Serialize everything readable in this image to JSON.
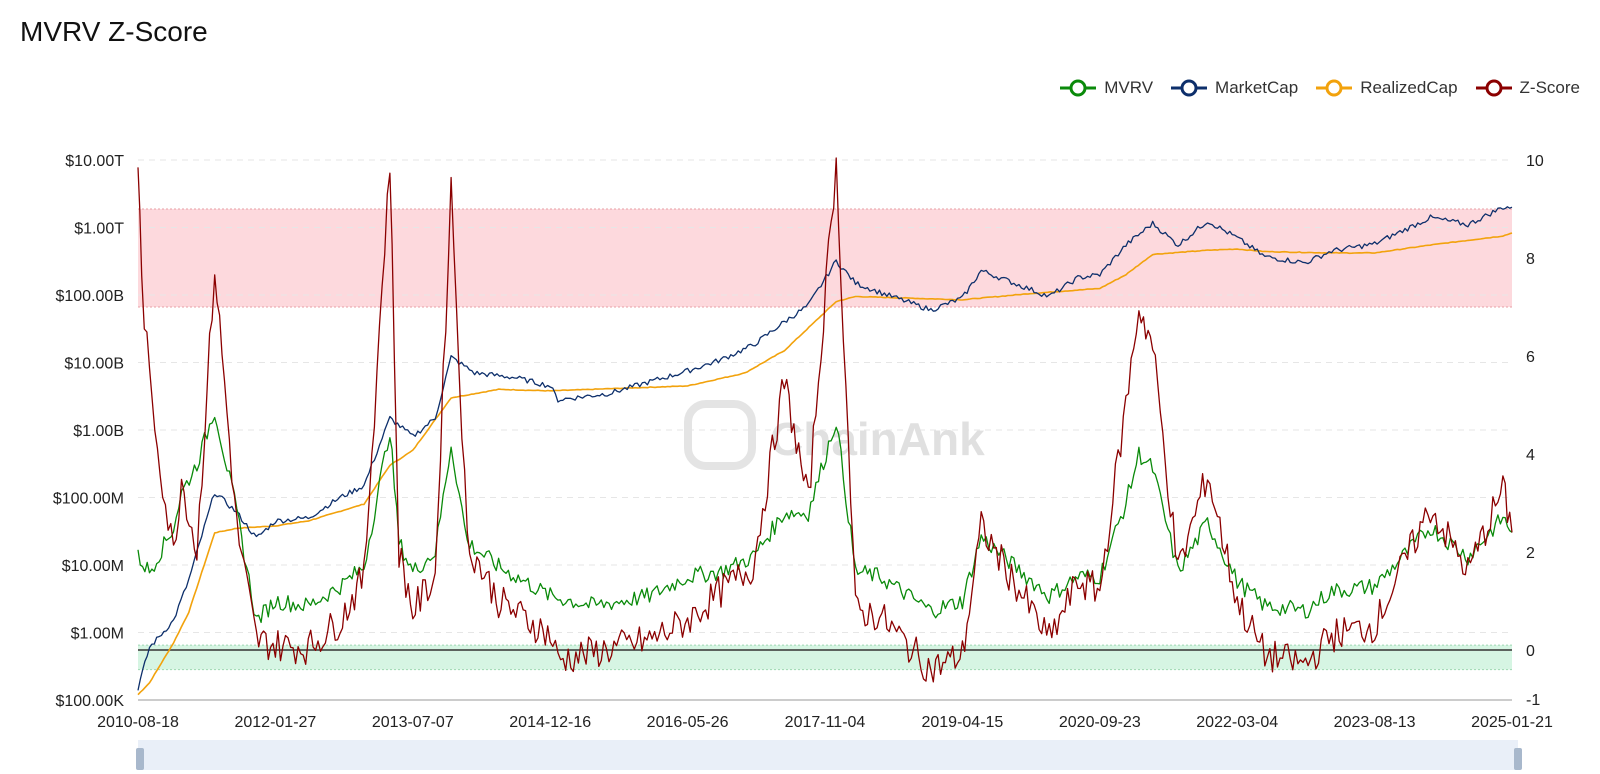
{
  "title": "MVRV Z-Score",
  "watermark": "ChainAnk",
  "legend": [
    {
      "label": "MVRV",
      "color": "#0a8a0a"
    },
    {
      "label": "MarketCap",
      "color": "#0d2f6b"
    },
    {
      "label": "RealizedCap",
      "color": "#f2a20c"
    },
    {
      "label": "Z-Score",
      "color": "#8b0000"
    }
  ],
  "chart_data": {
    "type": "line",
    "left_axis": {
      "scale": "log",
      "ticks": [
        "$10.00T",
        "$1.00T",
        "$100.00B",
        "$10.00B",
        "$1.00B",
        "$100.00M",
        "$10.00M",
        "$1.00M",
        "$100.00K"
      ]
    },
    "right_axis": {
      "ticks": [
        "10",
        "8",
        "6",
        "4",
        "2",
        "0",
        "-1"
      ],
      "range": [
        -1,
        10
      ]
    },
    "x_ticks": [
      "2010-08-18",
      "2012-01-27",
      "2013-07-07",
      "2014-12-16",
      "2016-05-26",
      "2017-11-04",
      "2019-04-15",
      "2020-09-23",
      "2022-03-04",
      "2023-08-13",
      "2025-01-21"
    ],
    "bands": [
      {
        "axis": "right",
        "from": 7,
        "to": 9,
        "color": "#fdd9dd"
      },
      {
        "axis": "right",
        "from": -0.4,
        "to": 0.1,
        "color": "#d6f5e3"
      }
    ],
    "series": [
      {
        "name": "MarketCap",
        "axis": "left",
        "color": "#0d2f6b",
        "points": [
          [
            "2010-08-18",
            0.15
          ],
          [
            "2010-10-01",
            0.6
          ],
          [
            "2011-01-01",
            1.5
          ],
          [
            "2011-03-01",
            6
          ],
          [
            "2011-06-08",
            120
          ],
          [
            "2011-09-01",
            60
          ],
          [
            "2011-11-15",
            25
          ],
          [
            "2012-01-27",
            45
          ],
          [
            "2012-06-01",
            50
          ],
          [
            "2012-10-01",
            100
          ],
          [
            "2013-01-01",
            150
          ],
          [
            "2013-04-10",
            1500
          ],
          [
            "2013-07-07",
            800
          ],
          [
            "2013-10-01",
            1500
          ],
          [
            "2013-12-01",
            12000
          ],
          [
            "2014-03-01",
            7000
          ],
          [
            "2014-08-01",
            6000
          ],
          [
            "2014-12-16",
            4500
          ],
          [
            "2015-01-15",
            2800
          ],
          [
            "2015-08-01",
            3500
          ],
          [
            "2016-05-26",
            7500
          ],
          [
            "2016-10-01",
            11000
          ],
          [
            "2017-02-01",
            18000
          ],
          [
            "2017-06-01",
            40000
          ],
          [
            "2017-09-01",
            70000
          ],
          [
            "2017-12-17",
            320000
          ],
          [
            "2018-03-01",
            150000
          ],
          [
            "2018-06-01",
            110000
          ],
          [
            "2018-12-15",
            60000
          ],
          [
            "2019-04-15",
            90000
          ],
          [
            "2019-06-26",
            230000
          ],
          [
            "2020-03-13",
            95000
          ],
          [
            "2020-07-01",
            180000
          ],
          [
            "2020-09-23",
            200000
          ],
          [
            "2021-01-01",
            550000
          ],
          [
            "2021-04-14",
            1150000
          ],
          [
            "2021-07-20",
            550000
          ],
          [
            "2021-11-10",
            1250000
          ],
          [
            "2022-03-04",
            700000
          ],
          [
            "2022-06-18",
            370000
          ],
          [
            "2022-11-21",
            300000
          ],
          [
            "2023-03-01",
            450000
          ],
          [
            "2023-08-13",
            570000
          ],
          [
            "2024-03-14",
            1400000
          ],
          [
            "2024-08-05",
            1100000
          ],
          [
            "2024-12-17",
            2000000
          ],
          [
            "2025-01-21",
            2000000
          ]
        ]
      },
      {
        "name": "RealizedCap",
        "axis": "left",
        "color": "#f2a20c",
        "points": [
          [
            "2010-08-18",
            0.12
          ],
          [
            "2010-10-01",
            0.18
          ],
          [
            "2011-01-01",
            0.7
          ],
          [
            "2011-03-01",
            2
          ],
          [
            "2011-06-08",
            30
          ],
          [
            "2011-09-01",
            35
          ],
          [
            "2012-01-27",
            38
          ],
          [
            "2012-06-01",
            45
          ],
          [
            "2013-01-01",
            80
          ],
          [
            "2013-04-10",
            300
          ],
          [
            "2013-07-07",
            500
          ],
          [
            "2013-12-01",
            3000
          ],
          [
            "2014-06-01",
            4000
          ],
          [
            "2014-12-16",
            3800
          ],
          [
            "2016-05-26",
            4500
          ],
          [
            "2017-01-01",
            7000
          ],
          [
            "2017-06-01",
            15000
          ],
          [
            "2017-12-17",
            80000
          ],
          [
            "2018-03-01",
            95000
          ],
          [
            "2019-04-15",
            85000
          ],
          [
            "2020-01-01",
            105000
          ],
          [
            "2020-09-23",
            125000
          ],
          [
            "2021-01-01",
            200000
          ],
          [
            "2021-04-14",
            400000
          ],
          [
            "2021-11-10",
            460000
          ],
          [
            "2022-03-04",
            480000
          ],
          [
            "2022-06-18",
            440000
          ],
          [
            "2023-03-01",
            420000
          ],
          [
            "2023-08-13",
            420000
          ],
          [
            "2024-03-14",
            550000
          ],
          [
            "2024-12-17",
            750000
          ],
          [
            "2025-01-21",
            830000
          ]
        ]
      },
      {
        "name": "MVRV",
        "axis": "right",
        "color": "#0a8a0a",
        "points": [
          [
            "2010-08-18",
            1.9
          ],
          [
            "2010-10-01",
            1.6
          ],
          [
            "2011-01-01",
            2.5
          ],
          [
            "2011-02-01",
            3.2
          ],
          [
            "2011-04-01",
            3.8
          ],
          [
            "2011-06-08",
            4.9
          ],
          [
            "2011-09-01",
            2.8
          ],
          [
            "2011-11-15",
            0.6
          ],
          [
            "2012-01-27",
            1.0
          ],
          [
            "2012-06-01",
            0.9
          ],
          [
            "2012-10-01",
            1.3
          ],
          [
            "2013-01-01",
            1.7
          ],
          [
            "2013-04-10",
            4.5
          ],
          [
            "2013-05-15",
            2.2
          ],
          [
            "2013-07-07",
            1.6
          ],
          [
            "2013-10-01",
            2.0
          ],
          [
            "2013-12-01",
            4.2
          ],
          [
            "2014-02-01",
            2.2
          ],
          [
            "2014-06-01",
            1.7
          ],
          [
            "2014-12-16",
            1.1
          ],
          [
            "2015-06-01",
            0.9
          ],
          [
            "2016-01-01",
            1.1
          ],
          [
            "2016-05-26",
            1.5
          ],
          [
            "2016-10-01",
            1.6
          ],
          [
            "2017-02-01",
            1.9
          ],
          [
            "2017-06-01",
            2.8
          ],
          [
            "2017-09-01",
            2.8
          ],
          [
            "2017-12-17",
            4.7
          ],
          [
            "2018-03-01",
            1.6
          ],
          [
            "2018-06-01",
            1.5
          ],
          [
            "2018-12-15",
            0.8
          ],
          [
            "2019-04-15",
            1.0
          ],
          [
            "2019-06-26",
            2.3
          ],
          [
            "2020-03-13",
            1.1
          ],
          [
            "2020-07-01",
            1.5
          ],
          [
            "2020-09-23",
            1.5
          ],
          [
            "2021-01-01",
            3.0
          ],
          [
            "2021-02-20",
            4.0
          ],
          [
            "2021-04-14",
            3.7
          ],
          [
            "2021-07-20",
            1.6
          ],
          [
            "2021-11-10",
            2.6
          ],
          [
            "2022-03-04",
            1.4
          ],
          [
            "2022-06-18",
            0.9
          ],
          [
            "2022-11-21",
            0.8
          ],
          [
            "2023-03-01",
            1.2
          ],
          [
            "2023-08-13",
            1.3
          ],
          [
            "2024-03-14",
            2.5
          ],
          [
            "2024-08-05",
            1.9
          ],
          [
            "2024-12-17",
            2.7
          ],
          [
            "2025-01-21",
            2.4
          ]
        ]
      },
      {
        "name": "Z-Score",
        "axis": "right",
        "color": "#8b0000",
        "points": [
          [
            "2010-08-18",
            10
          ],
          [
            "2010-09-01",
            7.5
          ],
          [
            "2010-10-01",
            5.5
          ],
          [
            "2010-12-01",
            3.0
          ],
          [
            "2011-01-01",
            2.0
          ],
          [
            "2011-02-01",
            3.5
          ],
          [
            "2011-04-01",
            2.0
          ],
          [
            "2011-06-08",
            7.8
          ],
          [
            "2011-09-01",
            2.5
          ],
          [
            "2011-11-15",
            0.2
          ],
          [
            "2012-01-27",
            0.1
          ],
          [
            "2012-06-01",
            0.05
          ],
          [
            "2012-10-01",
            0.6
          ],
          [
            "2013-01-01",
            1.5
          ],
          [
            "2013-04-10",
            10
          ],
          [
            "2013-05-15",
            2.0
          ],
          [
            "2013-07-07",
            0.8
          ],
          [
            "2013-10-01",
            1.5
          ],
          [
            "2013-12-01",
            9.5
          ],
          [
            "2014-02-01",
            2.2
          ],
          [
            "2014-06-01",
            1.0
          ],
          [
            "2014-12-16",
            0.3
          ],
          [
            "2015-01-15",
            -0.2
          ],
          [
            "2015-06-01",
            -0.05
          ],
          [
            "2016-01-01",
            0.2
          ],
          [
            "2016-05-26",
            0.6
          ],
          [
            "2016-10-01",
            1.2
          ],
          [
            "2017-02-01",
            1.7
          ],
          [
            "2017-06-01",
            5.5
          ],
          [
            "2017-09-01",
            3.0
          ],
          [
            "2017-12-17",
            10
          ],
          [
            "2018-03-01",
            0.8
          ],
          [
            "2018-06-01",
            0.7
          ],
          [
            "2018-12-15",
            -0.4
          ],
          [
            "2019-04-15",
            -0.1
          ],
          [
            "2019-06-26",
            2.5
          ],
          [
            "2020-03-13",
            0.2
          ],
          [
            "2020-07-01",
            1.4
          ],
          [
            "2020-09-23",
            1.2
          ],
          [
            "2021-01-01",
            5.0
          ],
          [
            "2021-02-20",
            7.0
          ],
          [
            "2021-04-14",
            6.2
          ],
          [
            "2021-07-20",
            1.6
          ],
          [
            "2021-11-10",
            3.6
          ],
          [
            "2022-03-04",
            1.0
          ],
          [
            "2022-06-18",
            -0.1
          ],
          [
            "2022-11-21",
            -0.3
          ],
          [
            "2023-03-01",
            0.3
          ],
          [
            "2023-08-13",
            0.5
          ],
          [
            "2024-03-14",
            2.9
          ],
          [
            "2024-08-05",
            1.6
          ],
          [
            "2024-12-17",
            3.3
          ],
          [
            "2025-01-21",
            2.4
          ]
        ]
      }
    ]
  }
}
